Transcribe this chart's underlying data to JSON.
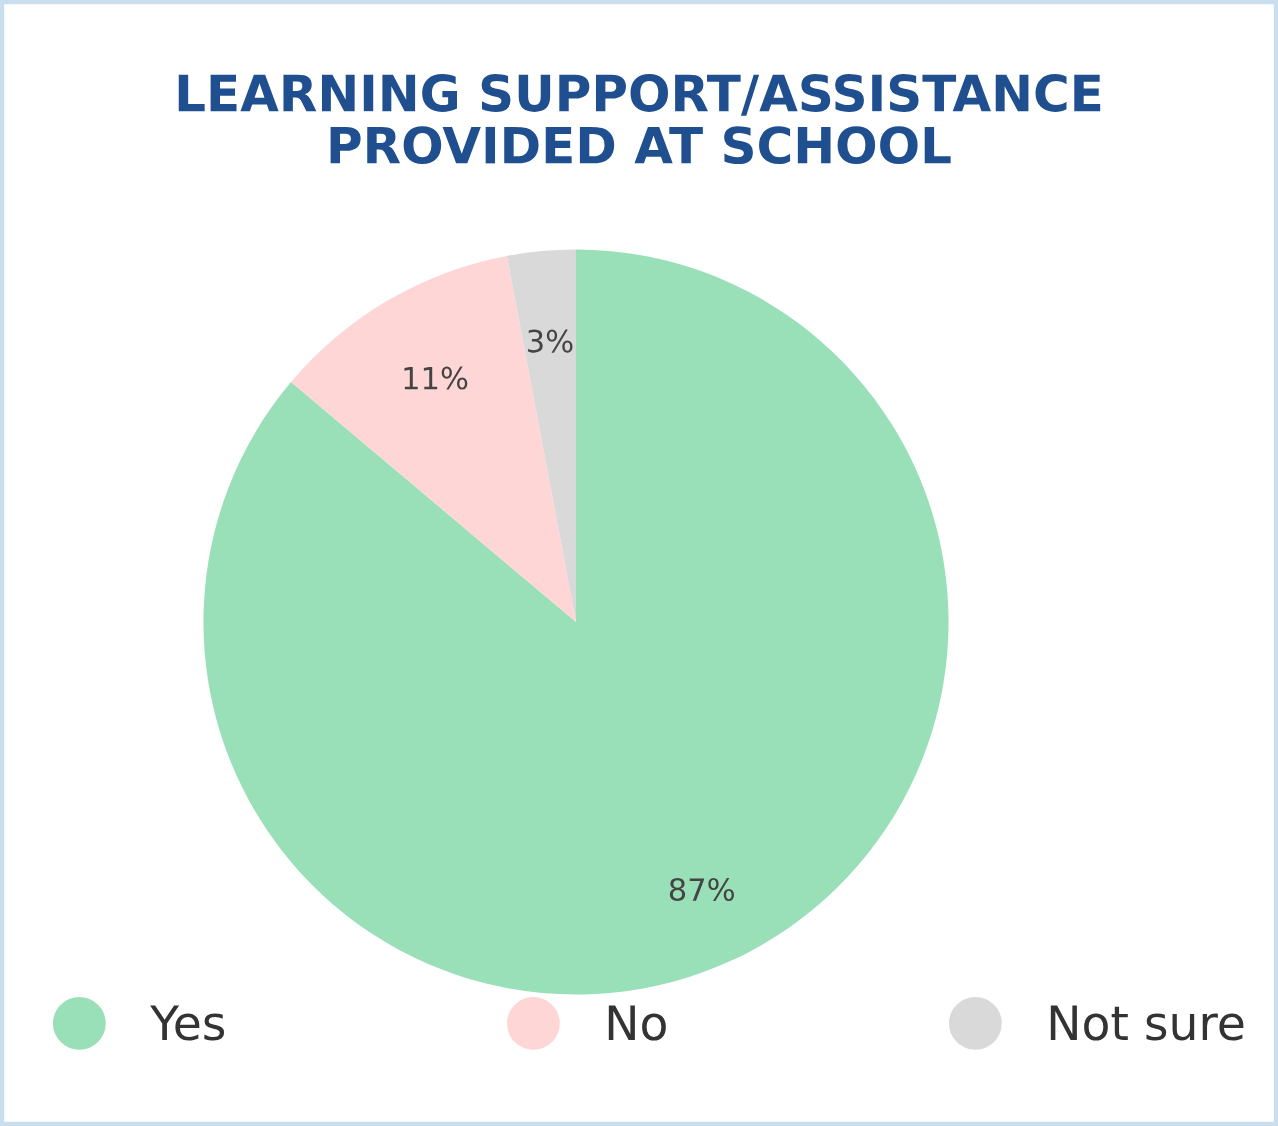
{
  "chart_data": {
    "type": "pie",
    "title": "LEARNING SUPPORT/ASSISTANCE\nPROVIDED AT SCHOOL",
    "categories": [
      "Yes",
      "No",
      "Not sure"
    ],
    "values": [
      87,
      11,
      3
    ],
    "colors": [
      "#99dfb8",
      "#ffd6d6",
      "#d9d9d9"
    ],
    "value_labels": [
      "87%",
      "11%",
      "3%"
    ],
    "legend": "bottom"
  }
}
